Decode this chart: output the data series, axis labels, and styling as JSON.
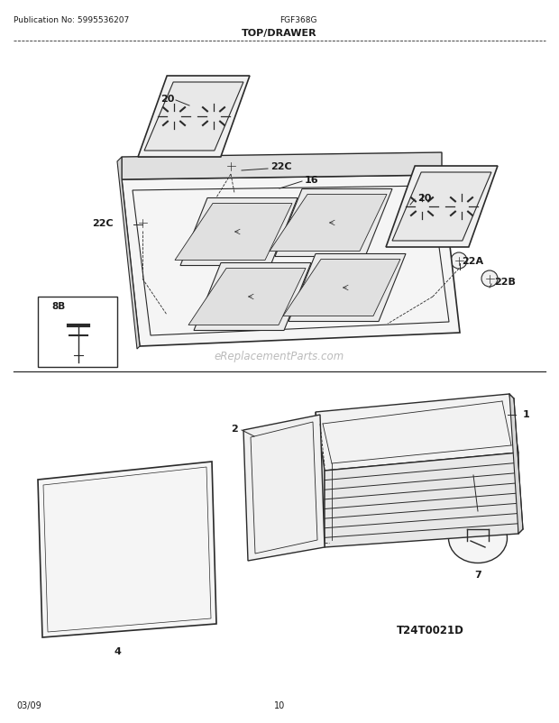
{
  "pub_no": "Publication No: 5995536207",
  "model": "FGF368G",
  "section": "TOP/DRAWER",
  "date": "03/09",
  "page": "10",
  "watermark": "eReplacementParts.com",
  "diagram_id": "T24T0021D",
  "bg_color": "#ffffff",
  "line_color": "#2a2a2a",
  "text_color": "#1a1a1a",
  "watermark_color": "#bbbbbb"
}
